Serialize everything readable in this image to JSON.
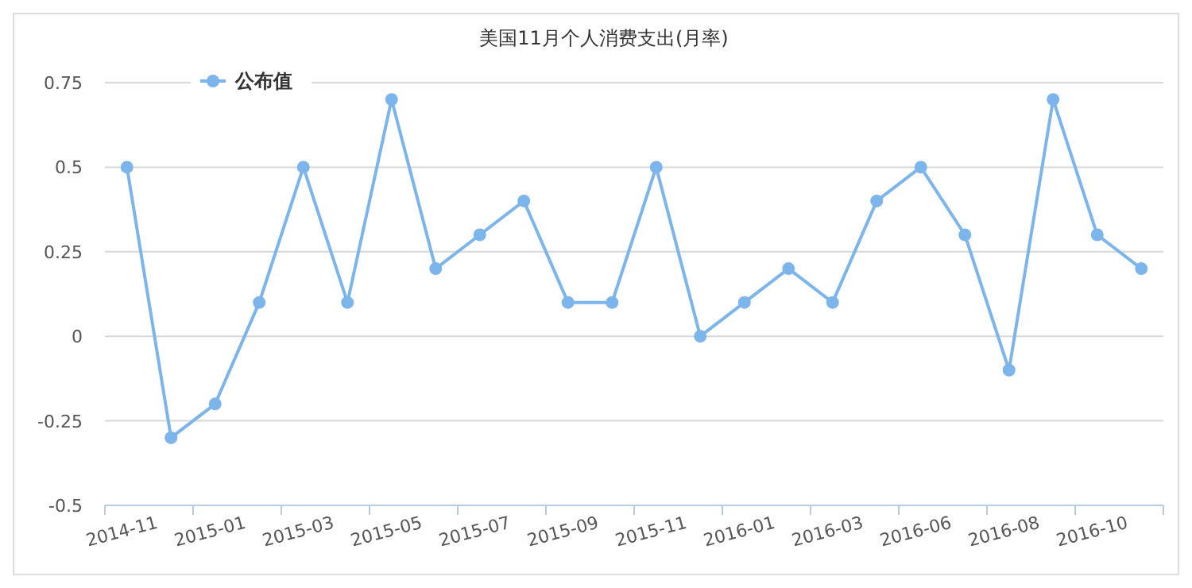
{
  "chart_data": {
    "type": "line",
    "title": "美国11月个人消费支出(月率)",
    "categories": [
      "2014-11",
      null,
      "2015-01",
      null,
      "2015-03",
      null,
      "2015-05",
      null,
      "2015-07",
      null,
      "2015-09",
      null,
      "2015-11",
      null,
      "2016-01",
      null,
      "2016-03",
      null,
      "2016-06",
      null,
      "2016-08",
      null,
      "2016-10",
      null
    ],
    "series": [
      {
        "name": "公布值",
        "color": "#7cb5ec",
        "values": [
          0.5,
          -0.3,
          -0.2,
          0.1,
          0.5,
          0.1,
          0.7,
          0.2,
          0.3,
          0.4,
          0.1,
          0.1,
          0.5,
          0,
          0.1,
          0.2,
          0.1,
          0.4,
          0.5,
          0.3,
          -0.1,
          0.7,
          0.3,
          0.2
        ]
      }
    ],
    "ylim": [
      -0.5,
      0.75
    ],
    "yticks": [
      -0.5,
      -0.25,
      0,
      0.25,
      0.5,
      0.75
    ],
    "grid": "y",
    "legend": "top left",
    "marker": "circle",
    "line_style": "solid"
  }
}
